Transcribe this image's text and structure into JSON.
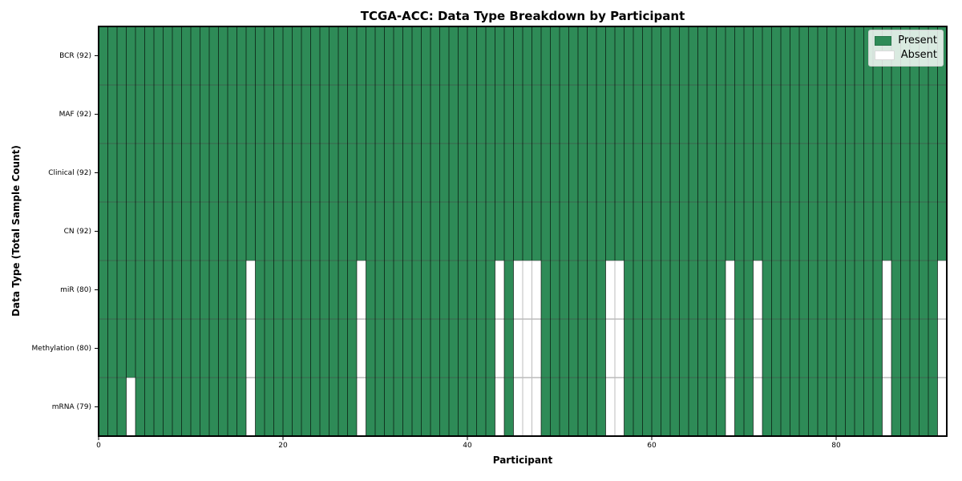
{
  "chart_data": {
    "type": "heatmap",
    "title": "TCGA-ACC: Data Type Breakdown by Participant",
    "xlabel": "Participant",
    "ylabel": "Data Type (Total Sample Count)",
    "x_ticks": [
      0,
      20,
      40,
      60,
      80
    ],
    "x_range": [
      0,
      92
    ],
    "n_participants": 92,
    "grid": true,
    "legend_position": "upper right",
    "colors": {
      "present": "#2e8b57",
      "absent": "#ffffff"
    },
    "rows": [
      {
        "label": "BCR (92)",
        "present_count": 92,
        "absent_participants": []
      },
      {
        "label": "MAF (92)",
        "present_count": 92,
        "absent_participants": []
      },
      {
        "label": "Clinical (92)",
        "present_count": 92,
        "absent_participants": []
      },
      {
        "label": "CN (92)",
        "present_count": 92,
        "absent_participants": []
      },
      {
        "label": "miR (80)",
        "present_count": 80,
        "absent_participants": [
          16,
          28,
          43,
          45,
          46,
          47,
          55,
          56,
          68,
          71,
          85,
          91
        ]
      },
      {
        "label": "Methylation (80)",
        "present_count": 80,
        "absent_participants": [
          16,
          28,
          43,
          45,
          46,
          47,
          55,
          56,
          68,
          71,
          85,
          91
        ]
      },
      {
        "label": "mRNA (79)",
        "present_count": 79,
        "absent_participants": [
          3,
          16,
          28,
          43,
          45,
          46,
          47,
          55,
          56,
          68,
          71,
          85,
          91
        ]
      }
    ],
    "legend": [
      {
        "label": "Present",
        "color": "#2e8b57"
      },
      {
        "label": "Absent",
        "color": "#ffffff"
      }
    ]
  }
}
